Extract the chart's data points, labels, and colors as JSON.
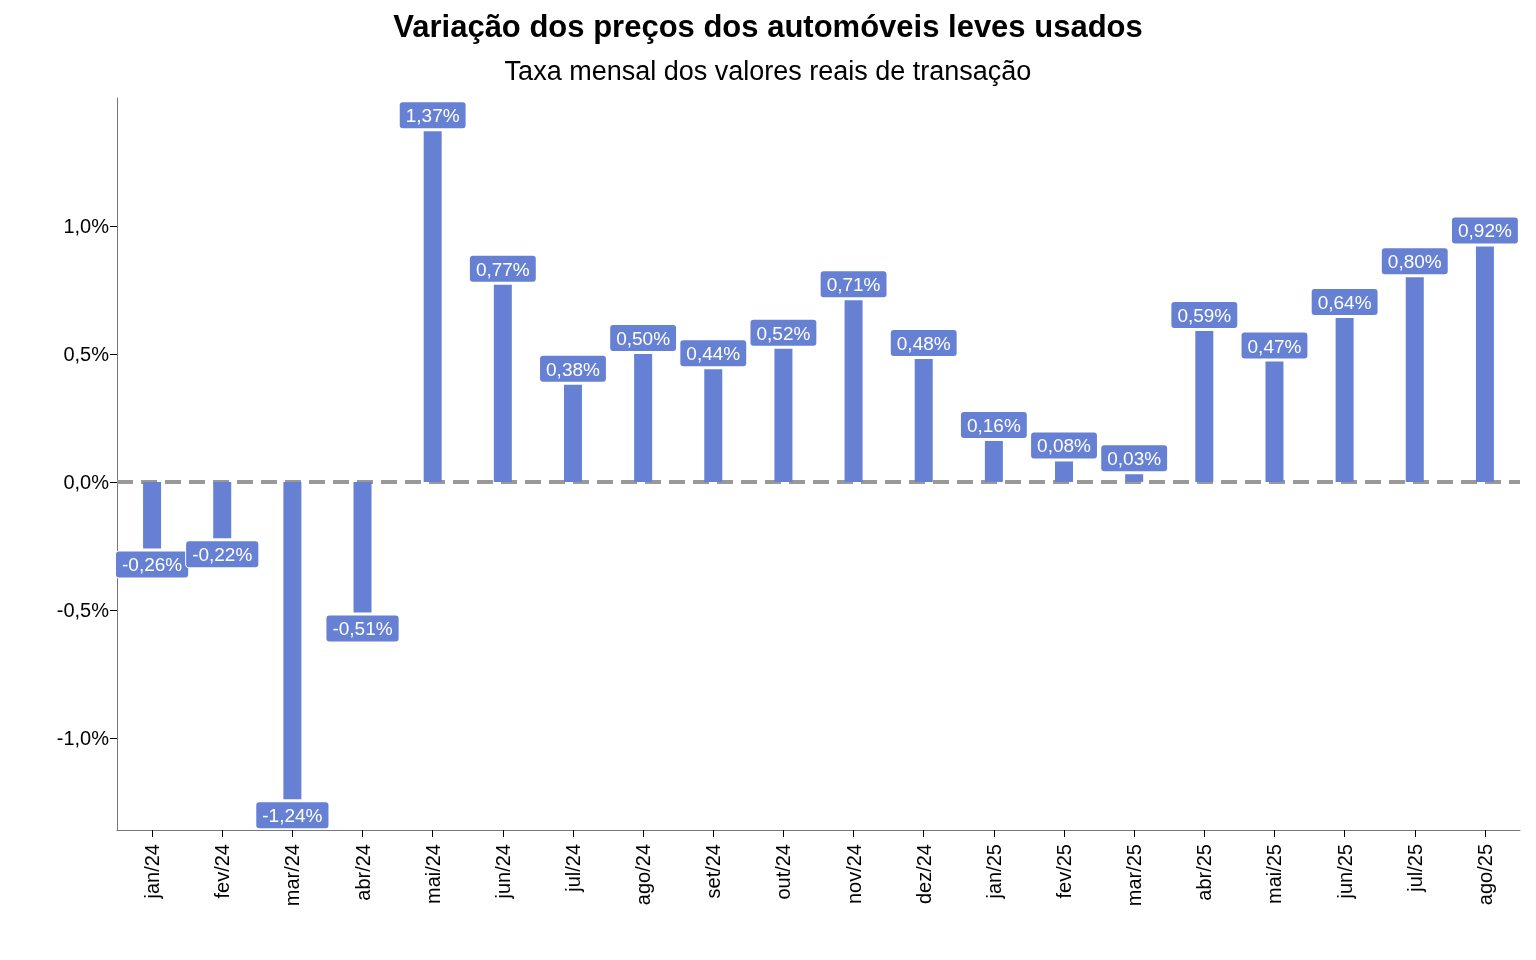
{
  "chart_data": {
    "type": "bar",
    "title": "Variação dos preços dos automóveis leves usados",
    "subtitle": "Taxa mensal dos valores reais de transação",
    "categories": [
      "jan/24",
      "fev/24",
      "mar/24",
      "abr/24",
      "mai/24",
      "jun/24",
      "jul/24",
      "ago/24",
      "set/24",
      "out/24",
      "nov/24",
      "dez/24",
      "jan/25",
      "fev/25",
      "mar/25",
      "abr/25",
      "mai/25",
      "jun/25",
      "jul/25",
      "ago/25"
    ],
    "values": [
      -0.26,
      -0.22,
      -1.24,
      -0.51,
      1.37,
      0.77,
      0.38,
      0.5,
      0.44,
      0.52,
      0.71,
      0.48,
      0.16,
      0.08,
      0.03,
      0.59,
      0.47,
      0.64,
      0.8,
      0.92
    ],
    "value_labels": [
      "-0,26%",
      "-0,22%",
      "-1,24%",
      "-0,51%",
      "1,37%",
      "0,77%",
      "0,38%",
      "0,50%",
      "0,44%",
      "0,52%",
      "0,71%",
      "0,48%",
      "0,16%",
      "0,08%",
      "0,03%",
      "0,59%",
      "0,47%",
      "0,64%",
      "0,80%",
      "0,92%"
    ],
    "color": "#6680d4",
    "ylim": [
      -1.36,
      1.5
    ],
    "yticks": [
      {
        "value": -1.0,
        "label": "-1,0%"
      },
      {
        "value": -0.5,
        "label": "-0,5%"
      },
      {
        "value": 0,
        "label": "0,0%"
      },
      {
        "value": 0.5,
        "label": "0,5%"
      },
      {
        "value": 1.0,
        "label": "1,0%"
      }
    ],
    "ref_lines": [
      {
        "axis": "y",
        "value": 0,
        "label": null,
        "color": "#999999",
        "line_style": "dashed"
      }
    ],
    "grid": false
  }
}
